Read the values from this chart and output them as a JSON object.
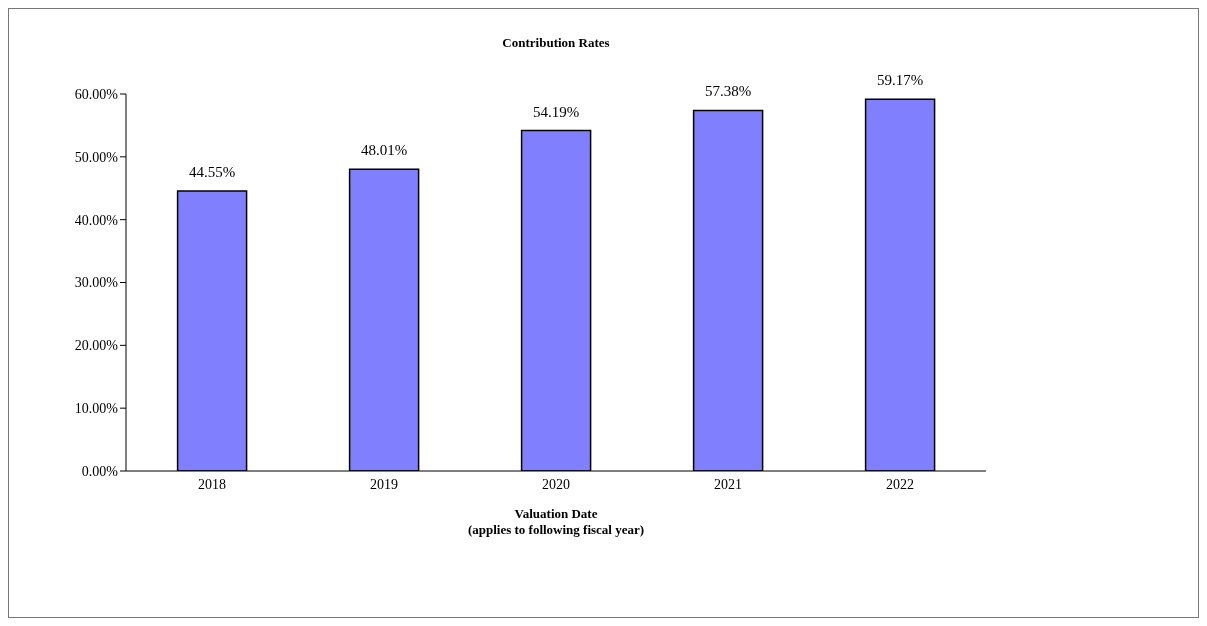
{
  "chart_data": {
    "type": "bar",
    "title": "Contribution Rates",
    "xlabel": "Valuation Date\n(applies to following fiscal year)",
    "categories": [
      "2018",
      "2019",
      "2020",
      "2021",
      "2022"
    ],
    "values": [
      44.55,
      48.01,
      54.19,
      57.38,
      59.17
    ],
    "value_labels": [
      "44.55%",
      "48.01%",
      "54.19%",
      "57.38%",
      "59.17%"
    ],
    "color": "#8080ff",
    "ylim": [
      0,
      60
    ],
    "yticks": [
      {
        "value": 0,
        "label": "0.00%"
      },
      {
        "value": 10,
        "label": "10.00%"
      },
      {
        "value": 20,
        "label": "20.00%"
      },
      {
        "value": 30,
        "label": "30.00%"
      },
      {
        "value": 40,
        "label": "40.00%"
      },
      {
        "value": 50,
        "label": "50.00%"
      },
      {
        "value": 60,
        "label": "60.00%"
      }
    ],
    "grid": false,
    "legend": false
  }
}
